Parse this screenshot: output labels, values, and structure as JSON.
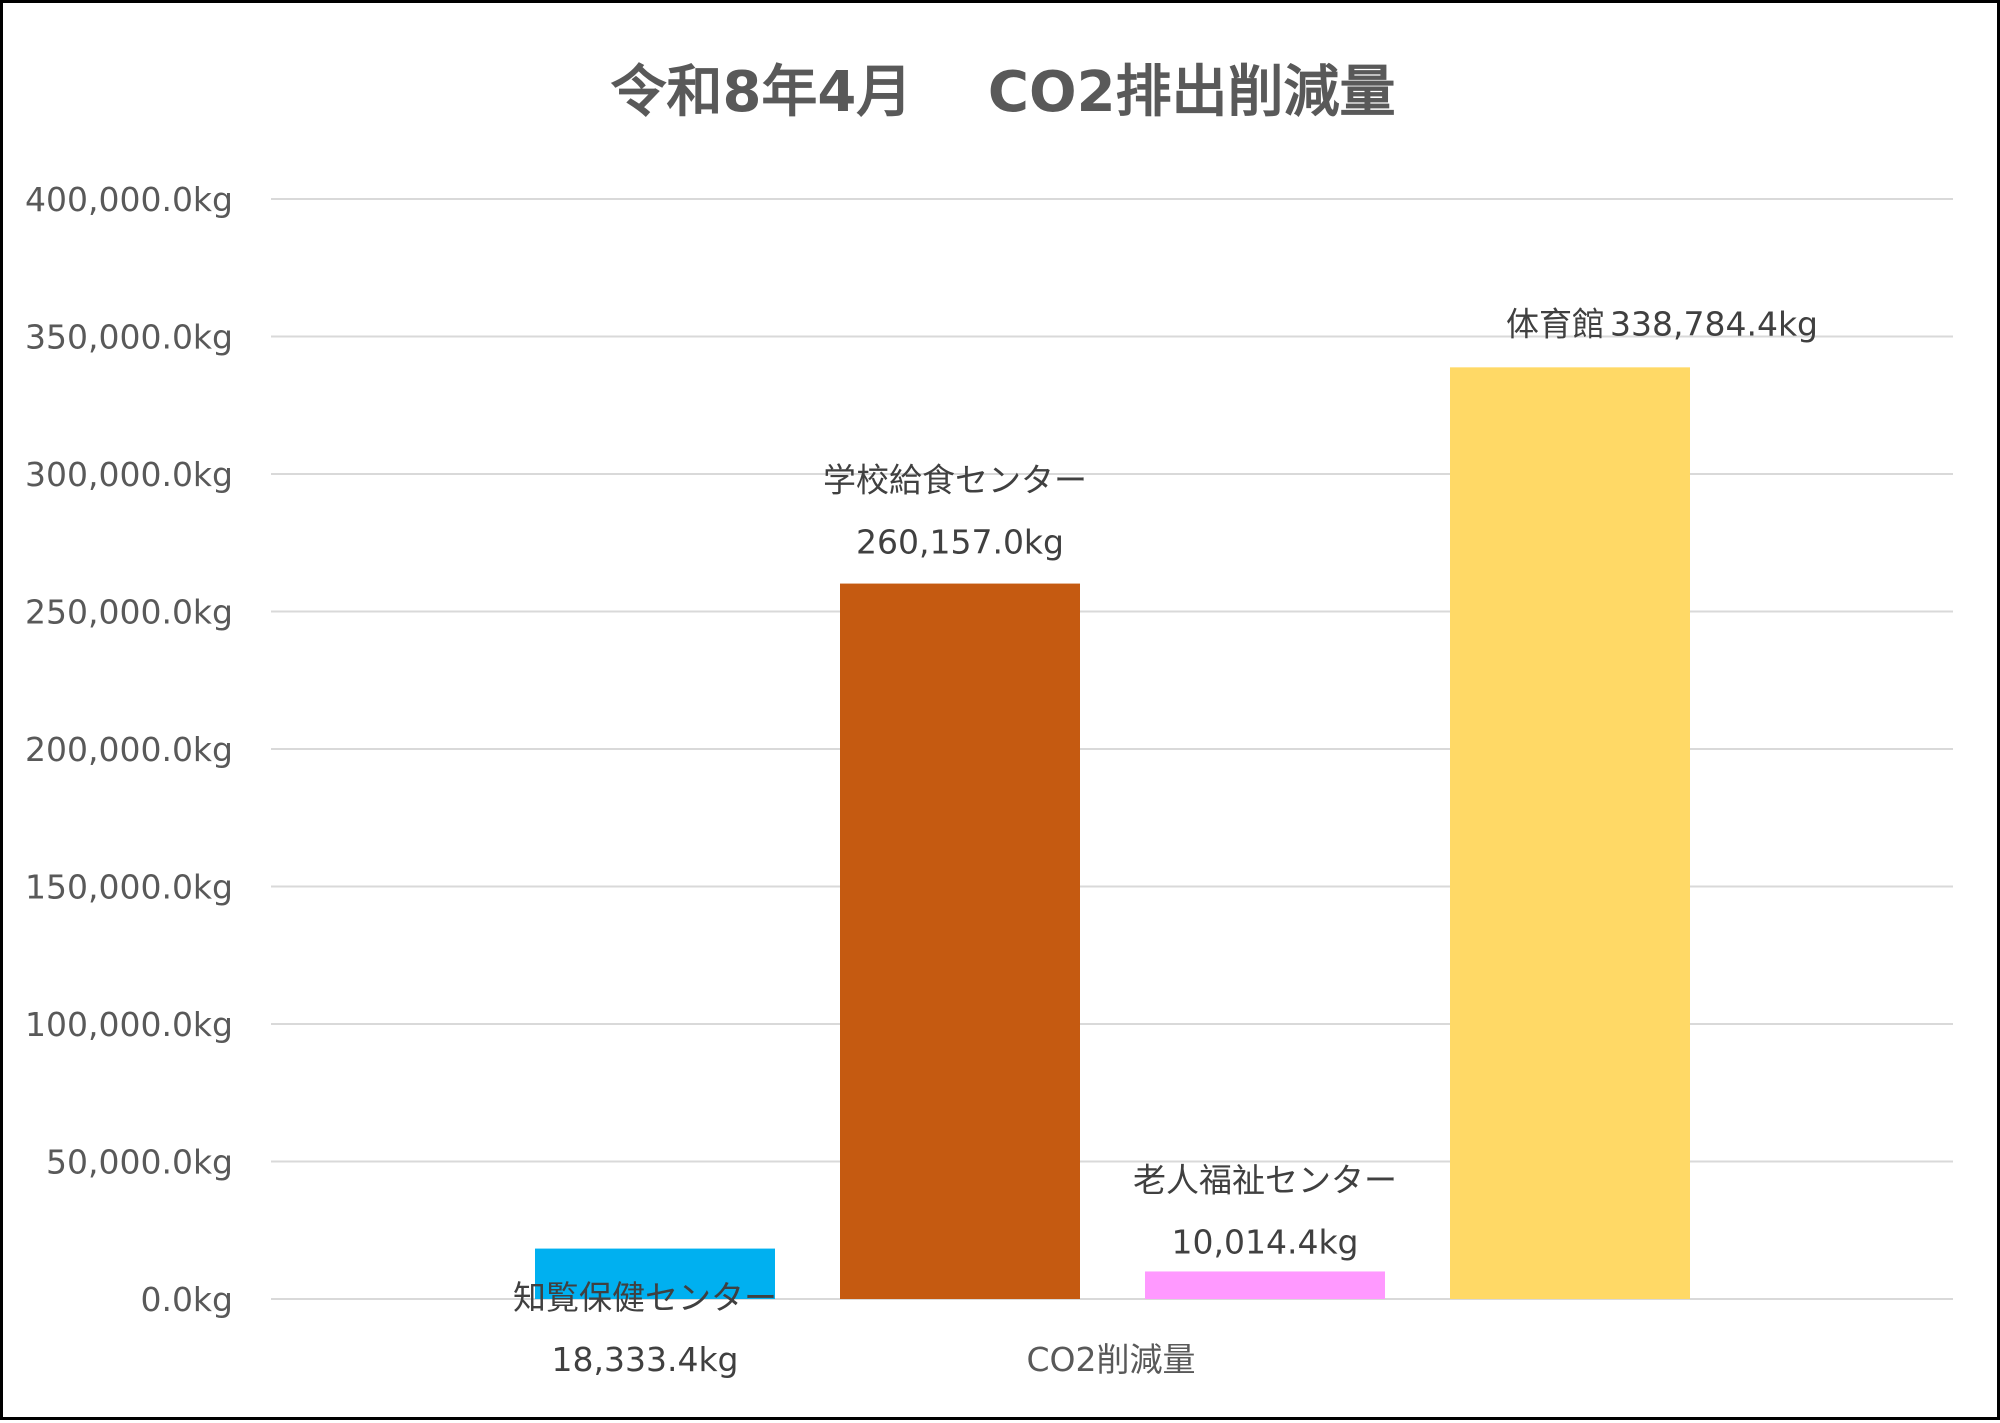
{
  "chart_data": {
    "type": "bar",
    "title": "令和8年4月　 CO2排出削減量",
    "categories": [
      "CO2削減量"
    ],
    "series": [
      {
        "name": "知覧保健センター",
        "values": [
          18333.4
        ],
        "color": "#00B0F0",
        "value_label": "18,333.4kg"
      },
      {
        "name": "学校給食センター",
        "values": [
          260157.0
        ],
        "color": "#C55A11",
        "value_label": "260,157.0kg"
      },
      {
        "name": "老人福祉センター",
        "values": [
          10014.4
        ],
        "color": "#FF99FF",
        "value_label": "10,014.4kg"
      },
      {
        "name": "体育館",
        "values": [
          338784.4
        ],
        "color": "#FFD966",
        "value_label": "338,784.4kg"
      }
    ],
    "ylim": [
      0,
      400000
    ],
    "y_ticks": [
      0,
      50000,
      100000,
      150000,
      200000,
      250000,
      300000,
      350000,
      400000
    ],
    "y_tick_labels": [
      "0.0kg",
      "50,000.0kg",
      "100,000.0kg",
      "150,000.0kg",
      "200,000.0kg",
      "250,000.0kg",
      "300,000.0kg",
      "350,000.0kg",
      "400,000.0kg"
    ],
    "grid": true,
    "legend": "none",
    "data_labels": "series name and value"
  }
}
